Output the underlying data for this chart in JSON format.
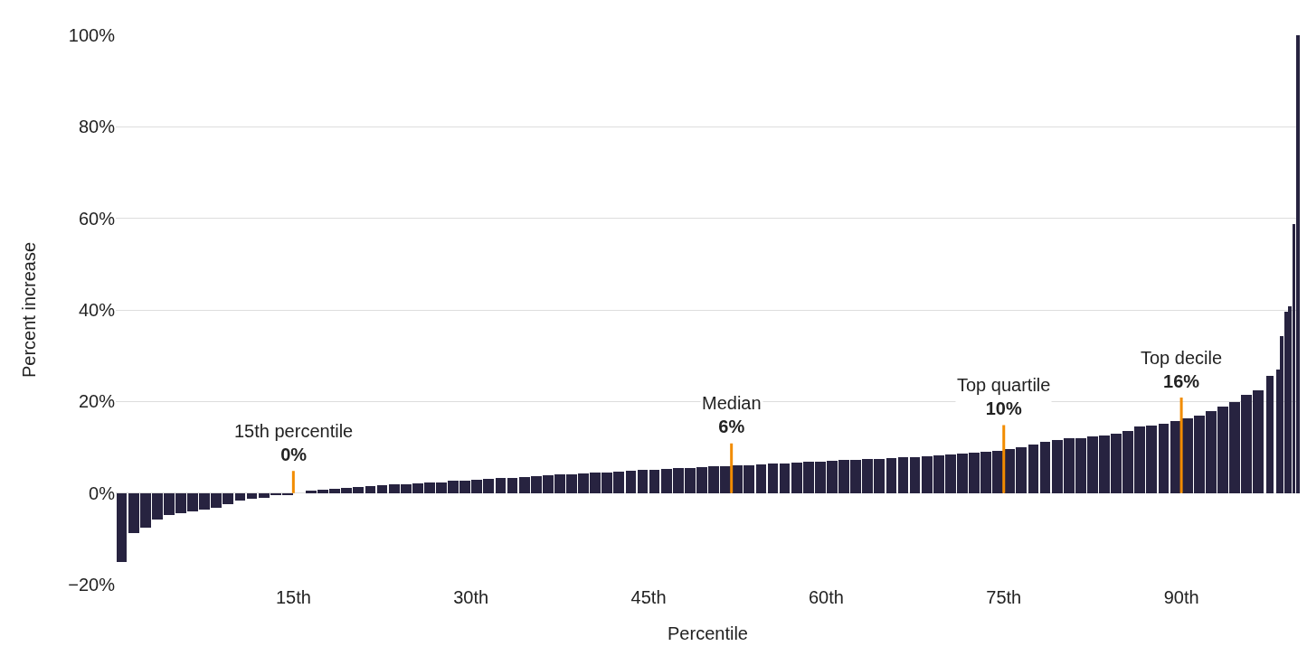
{
  "chart_data": {
    "type": "bar",
    "xlabel": "Percentile",
    "ylabel": "Percent increase",
    "x": [
      0.5,
      1.5,
      2.5,
      3.5,
      4.5,
      5.5,
      6.5,
      7.5,
      8.5,
      9.5,
      10.5,
      11.5,
      12.5,
      13.5,
      14.5,
      15.5,
      16.5,
      17.5,
      18.5,
      19.5,
      20.5,
      21.5,
      22.5,
      23.5,
      24.5,
      25.5,
      26.5,
      27.5,
      28.5,
      29.5,
      30.5,
      31.5,
      32.5,
      33.5,
      34.5,
      35.5,
      36.5,
      37.5,
      38.5,
      39.5,
      40.5,
      41.5,
      42.5,
      43.5,
      44.5,
      45.5,
      46.5,
      47.5,
      48.5,
      49.5,
      50.5,
      51.5,
      52.5,
      53.5,
      54.5,
      55.5,
      56.5,
      57.5,
      58.5,
      59.5,
      60.5,
      61.5,
      62.5,
      63.5,
      64.5,
      65.5,
      66.5,
      67.5,
      68.5,
      69.5,
      70.5,
      71.5,
      72.5,
      73.5,
      74.5,
      75.5,
      76.5,
      77.5,
      78.5,
      79.5,
      80.5,
      81.5,
      82.5,
      83.5,
      84.5,
      85.5,
      86.5,
      87.5,
      88.5,
      89.5,
      90.5,
      91.5,
      92.5,
      93.5,
      94.5,
      95.5,
      96.5,
      97.5,
      98.17,
      98.5,
      98.83,
      99.17,
      99.5,
      99.83
    ],
    "values": [
      -15,
      -8.7,
      -7.5,
      -5.8,
      -4.9,
      -4.5,
      -4.1,
      -3.7,
      -3.2,
      -2.5,
      -1.6,
      -1.3,
      -1.0,
      -0.5,
      -0.4,
      0,
      0.5,
      0.7,
      1.0,
      1.1,
      1.3,
      1.5,
      1.7,
      1.9,
      2.0,
      2.1,
      2.3,
      2.4,
      2.6,
      2.7,
      2.9,
      3.1,
      3.2,
      3.3,
      3.5,
      3.7,
      3.9,
      4.0,
      4.1,
      4.3,
      4.4,
      4.5,
      4.7,
      4.9,
      5.0,
      5.1,
      5.2,
      5.4,
      5.5,
      5.6,
      5.8,
      5.9,
      6.0,
      6.1,
      6.2,
      6.4,
      6.5,
      6.7,
      6.8,
      6.9,
      7.0,
      7.2,
      7.3,
      7.4,
      7.5,
      7.6,
      7.8,
      7.9,
      8.1,
      8.3,
      8.5,
      8.7,
      8.9,
      9.1,
      9.3,
      9.6,
      10.0,
      10.5,
      11.1,
      11.6,
      12.0,
      12.0,
      12.3,
      12.6,
      13.0,
      13.5,
      14.5,
      14.7,
      15.2,
      15.8,
      16.3,
      17.0,
      17.8,
      18.8,
      19.8,
      21.5,
      22.5,
      25.5,
      27,
      34.3,
      39.7,
      40.7,
      58.7,
      100
    ],
    "color": "#272340",
    "xlim": [
      0,
      100
    ],
    "xticks": [
      {
        "value": 15,
        "label": "15th"
      },
      {
        "value": 30,
        "label": "30th"
      },
      {
        "value": 45,
        "label": "45th"
      },
      {
        "value": 60,
        "label": "60th"
      },
      {
        "value": 75,
        "label": "75th"
      },
      {
        "value": 90,
        "label": "90th"
      }
    ],
    "ylim": [
      -20,
      100
    ],
    "yticks": [
      {
        "value": -20,
        "label": "−20%"
      },
      {
        "value": 0,
        "label": "0%"
      },
      {
        "value": 20,
        "label": "20%"
      },
      {
        "value": 40,
        "label": "40%"
      },
      {
        "value": 60,
        "label": "60%"
      },
      {
        "value": 80,
        "label": "80%"
      },
      {
        "value": 100,
        "label": "100%"
      }
    ],
    "grid": "y",
    "annotations": [
      {
        "text": "15th percentile\n0%",
        "x": 15,
        "y": 0
      },
      {
        "text": "Median\n6%",
        "x": 52,
        "y": 6
      },
      {
        "text": "Top quartile\n10%",
        "x": 75,
        "y": 10
      },
      {
        "text": "Top decile\n16%",
        "x": 90,
        "y": 16
      }
    ]
  }
}
